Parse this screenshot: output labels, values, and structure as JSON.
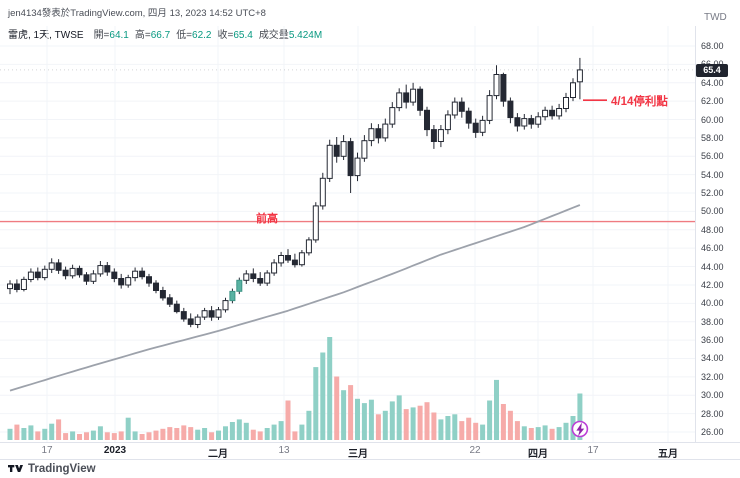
{
  "header": {
    "attribution": "jen4134發表於TradingView.com, 四月 13, 2023 14:52 UTC+8",
    "currency": "TWD"
  },
  "legend": {
    "symbol": "雷虎, 1天, TWSE",
    "open_label": "開=",
    "open": "64.1",
    "high_label": "高=",
    "high": "66.7",
    "low_label": "低=",
    "low": "62.2",
    "close_label": "收=",
    "close": "65.4",
    "volume_label": "成交量",
    "volume": "5.424M"
  },
  "axes": {
    "price_ticks": [
      "68.00",
      "66.00",
      "64.00",
      "62.00",
      "60.00",
      "58.00",
      "56.00",
      "54.00",
      "52.00",
      "50.00",
      "48.00",
      "46.00",
      "44.00",
      "42.00",
      "40.00",
      "38.00",
      "36.00",
      "34.00",
      "32.00",
      "30.00",
      "28.00",
      "26.00"
    ],
    "last_price": "65.4",
    "time_ticks": [
      {
        "label": "17",
        "px": 47,
        "major": false
      },
      {
        "label": "2023",
        "px": 115,
        "major": true
      },
      {
        "label": "二月",
        "px": 218,
        "major": true
      },
      {
        "label": "13",
        "px": 284,
        "major": false
      },
      {
        "label": "三月",
        "px": 358,
        "major": true
      },
      {
        "label": "22",
        "px": 475,
        "major": false
      },
      {
        "label": "四月",
        "px": 538,
        "major": true
      },
      {
        "label": "17",
        "px": 593,
        "major": false
      },
      {
        "label": "五月",
        "px": 668,
        "major": true
      }
    ]
  },
  "annotations": {
    "prev_high": {
      "label": "前高",
      "price": 48.9
    },
    "take_profit": {
      "label": "4/14停利點",
      "price": 62.1
    }
  },
  "marker": {
    "icon": "lightning",
    "candle_index": 82
  },
  "footer": {
    "brand": "TradingView"
  },
  "chart_data": {
    "type": "candlestick",
    "title": "雷虎, 1天, TWSE",
    "ylabel": "TWD",
    "ylim": [
      26,
      68
    ],
    "grid": "faint",
    "last_price": 65.4,
    "ohlc_last": {
      "open": 64.1,
      "high": 66.7,
      "low": 62.2,
      "close": 65.4,
      "volume_M": 5.424
    },
    "candles": [
      [
        41.6,
        42.5,
        41.0,
        42.1,
        1.3
      ],
      [
        42.1,
        42.6,
        41.2,
        41.5,
        1.8
      ],
      [
        41.5,
        42.9,
        41.3,
        42.6,
        1.4
      ],
      [
        42.6,
        43.8,
        42.3,
        43.4,
        1.7
      ],
      [
        43.4,
        43.9,
        42.5,
        42.8,
        1.0
      ],
      [
        42.8,
        44.1,
        42.5,
        43.7,
        1.3
      ],
      [
        43.7,
        44.9,
        43.3,
        44.4,
        1.9
      ],
      [
        44.4,
        44.8,
        43.2,
        43.6,
        2.4
      ],
      [
        43.6,
        44.0,
        42.6,
        43.0,
        0.8
      ],
      [
        43.0,
        44.2,
        42.7,
        43.8,
        1.0
      ],
      [
        43.8,
        44.1,
        42.8,
        43.1,
        0.7
      ],
      [
        43.1,
        43.4,
        42.0,
        42.4,
        0.9
      ],
      [
        42.4,
        43.6,
        42.1,
        43.2,
        1.1
      ],
      [
        43.2,
        44.6,
        42.9,
        44.1,
        1.6
      ],
      [
        44.1,
        44.5,
        43.0,
        43.4,
        0.9
      ],
      [
        43.4,
        43.8,
        42.3,
        42.7,
        0.8
      ],
      [
        42.7,
        43.2,
        41.6,
        42.0,
        1.0
      ],
      [
        42.0,
        43.1,
        41.7,
        42.8,
        2.6
      ],
      [
        42.8,
        43.9,
        42.4,
        43.5,
        1.0
      ],
      [
        43.5,
        43.9,
        42.6,
        42.9,
        0.7
      ],
      [
        42.9,
        43.2,
        41.8,
        42.2,
        0.9
      ],
      [
        42.2,
        42.5,
        41.1,
        41.4,
        1.1
      ],
      [
        41.4,
        41.8,
        40.3,
        40.6,
        1.3
      ],
      [
        40.6,
        41.0,
        39.6,
        39.9,
        1.5
      ],
      [
        39.9,
        40.3,
        38.9,
        39.1,
        1.4
      ],
      [
        39.1,
        39.5,
        38.0,
        38.3,
        1.7
      ],
      [
        38.3,
        38.9,
        37.4,
        37.7,
        1.5
      ],
      [
        37.7,
        38.8,
        37.3,
        38.5,
        1.2
      ],
      [
        38.5,
        39.5,
        38.2,
        39.2,
        1.4
      ],
      [
        39.2,
        39.7,
        38.1,
        38.5,
        0.9
      ],
      [
        38.5,
        39.6,
        38.2,
        39.3,
        1.1
      ],
      [
        39.3,
        40.6,
        39.0,
        40.3,
        1.6
      ],
      [
        40.3,
        41.6,
        40.0,
        41.3,
        2.1
      ],
      [
        41.3,
        42.8,
        41.0,
        42.5,
        2.4
      ],
      [
        42.5,
        43.6,
        42.1,
        43.2,
        2.0
      ],
      [
        43.2,
        43.8,
        42.3,
        42.7,
        1.2
      ],
      [
        42.7,
        43.4,
        41.9,
        42.2,
        1.0
      ],
      [
        42.2,
        43.6,
        41.9,
        43.3,
        1.4
      ],
      [
        43.3,
        44.8,
        43.0,
        44.4,
        1.8
      ],
      [
        44.4,
        45.6,
        44.0,
        45.2,
        2.2
      ],
      [
        45.2,
        45.9,
        44.4,
        44.7,
        4.6
      ],
      [
        44.7,
        45.4,
        43.9,
        44.2,
        1.0
      ],
      [
        44.2,
        45.8,
        44.0,
        45.5,
        1.8
      ],
      [
        45.5,
        47.2,
        45.2,
        46.9,
        3.4
      ],
      [
        46.9,
        51.0,
        46.6,
        50.6,
        8.5
      ],
      [
        50.6,
        54.2,
        50.2,
        53.6,
        10.2
      ],
      [
        53.6,
        57.8,
        53.2,
        57.2,
        12.0
      ],
      [
        57.2,
        58.1,
        55.3,
        56.0,
        7.4
      ],
      [
        56.0,
        58.3,
        55.6,
        57.6,
        5.8
      ],
      [
        57.6,
        58.0,
        52.0,
        53.9,
        6.4
      ],
      [
        53.9,
        56.4,
        53.3,
        55.8,
        4.8
      ],
      [
        55.8,
        58.3,
        55.4,
        57.7,
        4.3
      ],
      [
        57.7,
        59.6,
        57.1,
        59.0,
        4.7
      ],
      [
        59.0,
        59.5,
        57.4,
        58.0,
        3.0
      ],
      [
        58.0,
        60.1,
        57.6,
        59.5,
        3.4
      ],
      [
        59.5,
        61.9,
        59.1,
        61.3,
        4.5
      ],
      [
        61.3,
        63.4,
        60.9,
        62.9,
        5.2
      ],
      [
        62.9,
        63.8,
        61.2,
        61.9,
        3.6
      ],
      [
        61.9,
        64.0,
        61.5,
        63.3,
        3.8
      ],
      [
        63.3,
        63.6,
        60.4,
        61.0,
        4.0
      ],
      [
        61.0,
        61.4,
        58.2,
        58.9,
        4.4
      ],
      [
        58.9,
        59.4,
        56.8,
        57.6,
        3.2
      ],
      [
        57.6,
        59.4,
        57.0,
        58.9,
        2.4
      ],
      [
        58.9,
        61.0,
        58.4,
        60.5,
        2.8
      ],
      [
        60.5,
        62.4,
        60.1,
        61.9,
        3.0
      ],
      [
        61.9,
        62.4,
        60.2,
        60.9,
        2.2
      ],
      [
        60.9,
        61.3,
        59.0,
        59.6,
        2.6
      ],
      [
        59.6,
        60.1,
        58.0,
        58.6,
        2.0
      ],
      [
        58.6,
        60.4,
        58.2,
        59.9,
        1.8
      ],
      [
        59.9,
        63.2,
        59.5,
        62.6,
        4.6
      ],
      [
        62.6,
        65.9,
        62.2,
        64.9,
        7.0
      ],
      [
        64.9,
        65.1,
        61.4,
        62.0,
        4.2
      ],
      [
        62.0,
        62.4,
        59.6,
        60.2,
        3.4
      ],
      [
        60.2,
        60.7,
        58.7,
        59.3,
        2.2
      ],
      [
        59.3,
        60.6,
        58.9,
        60.1,
        1.6
      ],
      [
        60.1,
        60.5,
        59.0,
        59.5,
        1.4
      ],
      [
        59.5,
        60.8,
        59.1,
        60.3,
        1.5
      ],
      [
        60.3,
        61.4,
        59.9,
        61.0,
        1.7
      ],
      [
        61.0,
        61.5,
        60.0,
        60.4,
        1.3
      ],
      [
        60.4,
        61.7,
        60.0,
        61.2,
        1.5
      ],
      [
        61.2,
        62.9,
        60.8,
        62.4,
        2.0
      ],
      [
        62.4,
        64.5,
        62.0,
        64.0,
        2.8
      ],
      [
        64.1,
        66.7,
        62.2,
        65.4,
        5.424
      ]
    ],
    "accent_candles": [
      32,
      33
    ],
    "ma_points": [
      [
        0,
        30.5
      ],
      [
        10,
        32.8
      ],
      [
        20,
        35.0
      ],
      [
        30,
        37.0
      ],
      [
        40,
        39.2
      ],
      [
        48,
        41.2
      ],
      [
        55,
        43.2
      ],
      [
        62,
        45.3
      ],
      [
        68,
        46.8
      ],
      [
        74,
        48.3
      ],
      [
        78,
        49.5
      ],
      [
        82,
        50.7
      ]
    ],
    "colors": {
      "body_up": "#ffffff",
      "body_down": "#242833",
      "wick": "#242833",
      "body_accent": "#58b2a2",
      "body_accent_stroke": "#3d9486",
      "vol_up": "#8fd0c6",
      "vol_down": "#f6aba9",
      "ma": "#9da2ab",
      "prev_high": "#ef7b81",
      "annotation": "#f23645",
      "last_price_bg": "#20242e",
      "marker_ring": "#bb3fd6",
      "marker_bolt": "#8e24aa",
      "grid": "#f2f4f8"
    }
  }
}
